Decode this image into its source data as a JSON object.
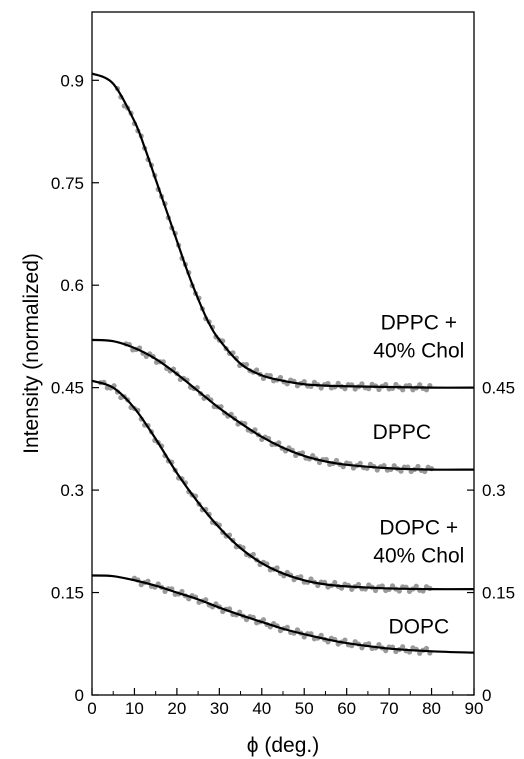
{
  "chart_data": {
    "type": "scatter",
    "xlabel": "ϕ (deg.)",
    "ylabel": "Intensity (normalized)",
    "xlim": [
      0,
      90
    ],
    "ylim": [
      0,
      1.0
    ],
    "x_ticks": [
      "0",
      "10",
      "20",
      "30",
      "40",
      "50",
      "60",
      "70",
      "80",
      "90"
    ],
    "y_ticks_left": [
      "0",
      "0.15",
      "0.3",
      "0.45",
      "0.6",
      "0.75",
      "0.9"
    ],
    "y_ticks_right": [
      "0",
      "0.15",
      "0.3",
      "0.45"
    ],
    "grid": false,
    "series": [
      {
        "name": "DPPC + 40% Chol",
        "label_lines": [
          "DPPC +",
          "40% Chol"
        ],
        "x": [
          0,
          5,
          10,
          12.5,
          15,
          17.5,
          20,
          22.5,
          25,
          27.5,
          30,
          35,
          40,
          45,
          50,
          55,
          60,
          70,
          80,
          90
        ],
        "y": [
          0.91,
          0.895,
          0.84,
          0.8,
          0.755,
          0.71,
          0.665,
          0.62,
          0.58,
          0.545,
          0.52,
          0.485,
          0.468,
          0.46,
          0.455,
          0.453,
          0.452,
          0.451,
          0.45,
          0.45
        ]
      },
      {
        "name": "DPPC",
        "label_lines": [
          "DPPC"
        ],
        "x": [
          0,
          5,
          10,
          15,
          20,
          25,
          30,
          35,
          40,
          45,
          50,
          55,
          60,
          70,
          80,
          90
        ],
        "y": [
          0.52,
          0.518,
          0.508,
          0.492,
          0.47,
          0.445,
          0.42,
          0.398,
          0.378,
          0.362,
          0.35,
          0.342,
          0.337,
          0.332,
          0.33,
          0.33
        ]
      },
      {
        "name": "DOPC + 40% Chol",
        "label_lines": [
          "DOPC +",
          "40% Chol"
        ],
        "x": [
          0,
          5,
          10,
          15,
          20,
          25,
          30,
          35,
          40,
          45,
          50,
          55,
          60,
          70,
          80,
          90
        ],
        "y": [
          0.46,
          0.45,
          0.42,
          0.375,
          0.325,
          0.282,
          0.245,
          0.215,
          0.193,
          0.178,
          0.168,
          0.162,
          0.159,
          0.156,
          0.155,
          0.155
        ]
      },
      {
        "name": "DOPC",
        "label_lines": [
          "DOPC"
        ],
        "x": [
          0,
          5,
          10,
          15,
          20,
          25,
          30,
          35,
          40,
          45,
          50,
          55,
          60,
          70,
          80,
          90
        ],
        "y": [
          0.175,
          0.174,
          0.168,
          0.16,
          0.15,
          0.14,
          0.128,
          0.117,
          0.107,
          0.097,
          0.089,
          0.082,
          0.076,
          0.068,
          0.064,
          0.062
        ]
      }
    ]
  }
}
